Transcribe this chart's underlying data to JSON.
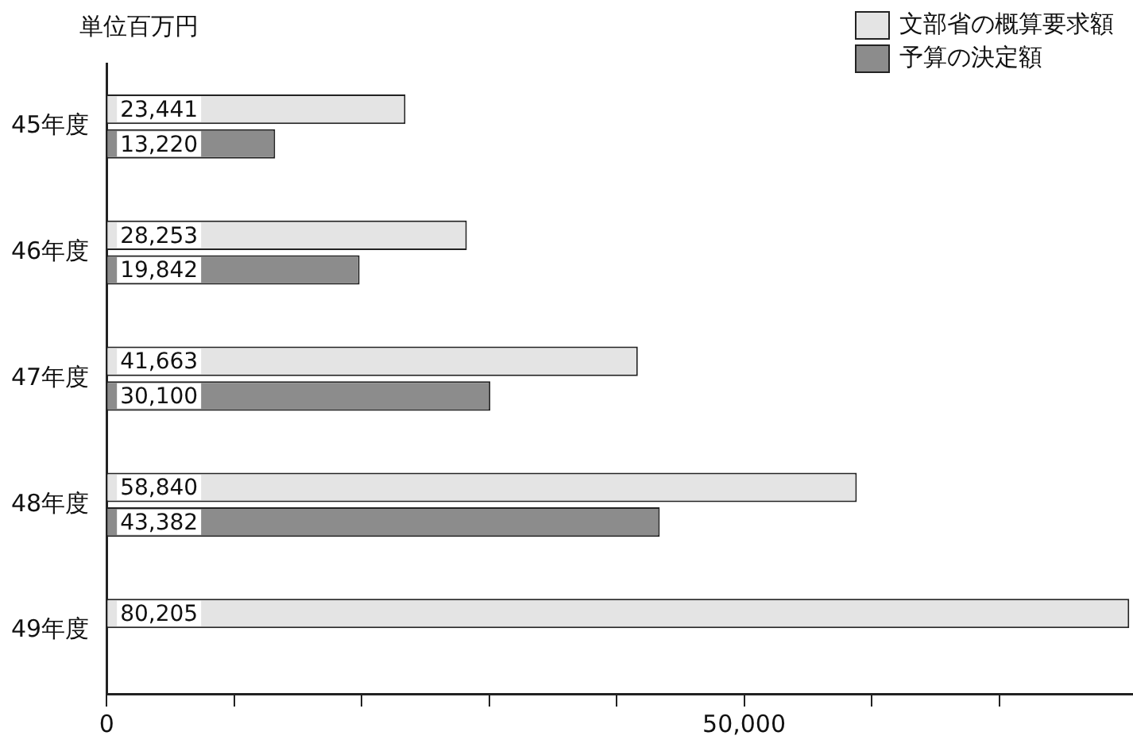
{
  "chart_data": {
    "type": "bar",
    "orientation": "horizontal",
    "ylabel": "単位百万円",
    "categories": [
      "45年度",
      "46年度",
      "47年度",
      "48年度",
      "49年度"
    ],
    "series": [
      {
        "name": "文部省の概算要求額",
        "color": "#e4e4e4",
        "values": [
          23441,
          28253,
          41663,
          58840,
          80205
        ],
        "value_labels": [
          "23,441",
          "28,253",
          "41,663",
          "58,840",
          "80,205"
        ]
      },
      {
        "name": "予算の決定額",
        "color": "#8c8c8c",
        "values": [
          13220,
          19842,
          30100,
          43382,
          null
        ],
        "value_labels": [
          "13,220",
          "19,842",
          "30,100",
          "43,382",
          null
        ]
      }
    ],
    "xlim": [
      0,
      80500
    ],
    "xticks": [
      0,
      {
        "value": 10000,
        "label": null
      },
      {
        "value": 20000,
        "label": null
      },
      {
        "value": 30000,
        "label": null
      },
      {
        "value": 40000,
        "label": null
      },
      {
        "value": 50000,
        "label": "50,000"
      },
      {
        "value": 60000,
        "label": null
      },
      {
        "value": 70000,
        "label": null
      }
    ],
    "grid": false,
    "legend": "top right"
  }
}
